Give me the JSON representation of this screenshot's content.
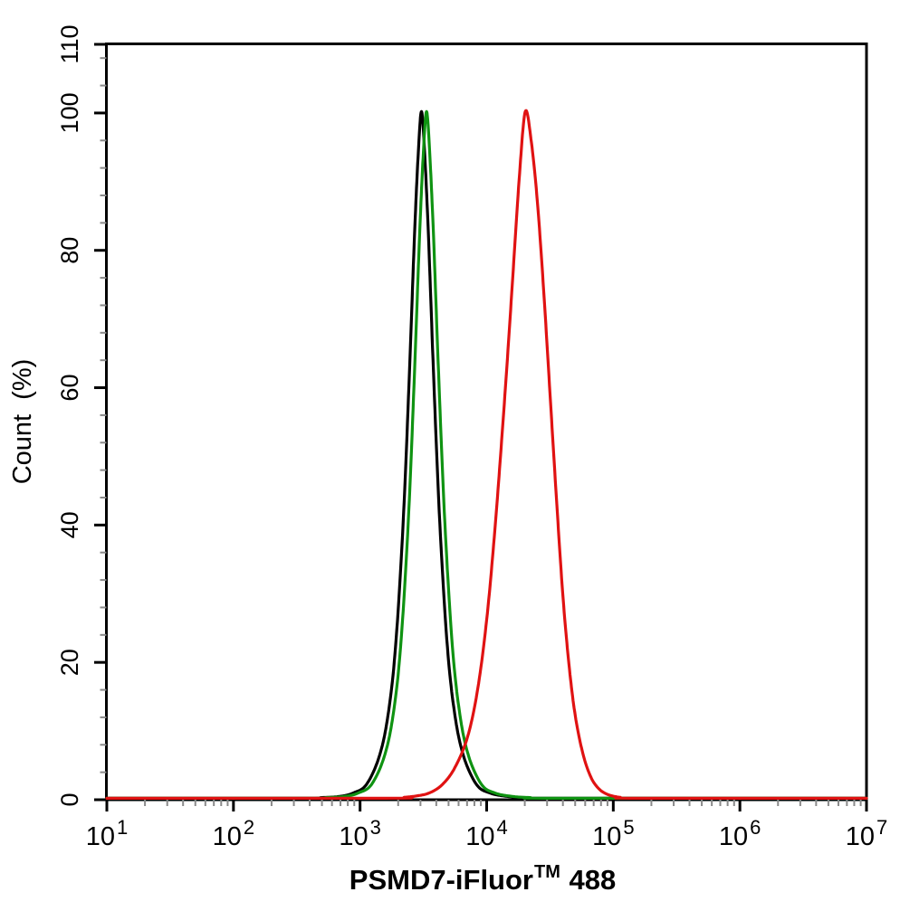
{
  "figure": {
    "background": "#ffffff",
    "axis_color": "#000000",
    "minor_tick_color": "#8a8a8a"
  },
  "chart_data": {
    "type": "line",
    "chart_kind": "flow-cytometry-histogram-overlay",
    "title": {
      "prefix": "PSMD7-iFluor",
      "superscript": "TM",
      "suffix": " 488"
    },
    "ylabel": "Count (%)",
    "legend": "none",
    "grid": "off",
    "x_axis": {
      "scale": "log10",
      "min": 10,
      "max": 10000000,
      "decade_exponents": [
        1,
        2,
        3,
        4,
        5,
        6,
        7
      ],
      "tick_labels": [
        {
          "base": "10",
          "exponent": "1"
        },
        {
          "base": "10",
          "exponent": "2"
        },
        {
          "base": "10",
          "exponent": "3"
        },
        {
          "base": "10",
          "exponent": "4"
        },
        {
          "base": "10",
          "exponent": "5"
        },
        {
          "base": "10",
          "exponent": "6"
        },
        {
          "base": "10",
          "exponent": "7"
        }
      ],
      "minor_mantissas": [
        2,
        3,
        4,
        5,
        6,
        7,
        8,
        9
      ]
    },
    "y_axis": {
      "min": 0,
      "max": 110,
      "major_ticks": [
        0,
        20,
        40,
        60,
        80,
        100,
        110
      ],
      "major_tick_labels": [
        "0",
        "20",
        "40",
        "60",
        "80",
        "100",
        "110"
      ],
      "minor_tick_step": 4,
      "unit": "%"
    },
    "series": [
      {
        "name": "series-black",
        "color": "#000000",
        "peak_x_approx": 3000,
        "peak_y": 100,
        "points_log10_pct": [
          [
            1.0,
            0
          ],
          [
            2.5,
            0
          ],
          [
            2.7,
            0.1
          ],
          [
            2.85,
            0.3
          ],
          [
            2.95,
            0.8
          ],
          [
            3.05,
            2
          ],
          [
            3.15,
            6
          ],
          [
            3.22,
            12
          ],
          [
            3.28,
            22
          ],
          [
            3.34,
            40
          ],
          [
            3.39,
            62
          ],
          [
            3.43,
            82
          ],
          [
            3.46,
            94
          ],
          [
            3.485,
            100
          ],
          [
            3.51,
            94
          ],
          [
            3.54,
            82
          ],
          [
            3.58,
            62
          ],
          [
            3.63,
            40
          ],
          [
            3.69,
            22
          ],
          [
            3.75,
            12
          ],
          [
            3.82,
            6
          ],
          [
            3.92,
            2
          ],
          [
            4.02,
            0.8
          ],
          [
            4.15,
            0.3
          ],
          [
            4.3,
            0.1
          ],
          [
            4.5,
            0
          ],
          [
            7.0,
            0
          ]
        ]
      },
      {
        "name": "series-green",
        "color": "#0f9312",
        "peak_x_approx": 3300,
        "peak_y": 100,
        "points_log10_pct": [
          [
            1.0,
            0
          ],
          [
            2.54,
            0
          ],
          [
            2.74,
            0.1
          ],
          [
            2.89,
            0.3
          ],
          [
            2.99,
            0.8
          ],
          [
            3.09,
            2
          ],
          [
            3.19,
            6
          ],
          [
            3.26,
            12
          ],
          [
            3.32,
            22
          ],
          [
            3.38,
            40
          ],
          [
            3.43,
            62
          ],
          [
            3.47,
            82
          ],
          [
            3.5,
            94
          ],
          [
            3.525,
            100
          ],
          [
            3.55,
            94
          ],
          [
            3.58,
            82
          ],
          [
            3.62,
            62
          ],
          [
            3.67,
            40
          ],
          [
            3.73,
            22
          ],
          [
            3.79,
            12
          ],
          [
            3.86,
            6
          ],
          [
            3.96,
            2
          ],
          [
            4.06,
            0.8
          ],
          [
            4.19,
            0.3
          ],
          [
            4.34,
            0.1
          ],
          [
            4.54,
            0
          ],
          [
            7.0,
            0
          ]
        ]
      },
      {
        "name": "series-red",
        "color": "#e01212",
        "peak_x_approx": 20000,
        "peak_y": 100,
        "points_log10_pct": [
          [
            1.0,
            0
          ],
          [
            3.2,
            0
          ],
          [
            3.35,
            0.15
          ],
          [
            3.45,
            0.35
          ],
          [
            3.55,
            0.8
          ],
          [
            3.65,
            2
          ],
          [
            3.75,
            4.5
          ],
          [
            3.85,
            9
          ],
          [
            3.93,
            16
          ],
          [
            4.0,
            26
          ],
          [
            4.06,
            38
          ],
          [
            4.11,
            50
          ],
          [
            4.16,
            63
          ],
          [
            4.21,
            77
          ],
          [
            4.26,
            91
          ],
          [
            4.305,
            100
          ],
          [
            4.35,
            96
          ],
          [
            4.4,
            87
          ],
          [
            4.45,
            74
          ],
          [
            4.5,
            59
          ],
          [
            4.55,
            44
          ],
          [
            4.6,
            30
          ],
          [
            4.65,
            19.5
          ],
          [
            4.7,
            12
          ],
          [
            4.76,
            6.5
          ],
          [
            4.82,
            3.2
          ],
          [
            4.88,
            1.5
          ],
          [
            4.95,
            0.6
          ],
          [
            5.05,
            0.15
          ],
          [
            5.2,
            0
          ],
          [
            7.0,
            0
          ]
        ]
      }
    ]
  }
}
